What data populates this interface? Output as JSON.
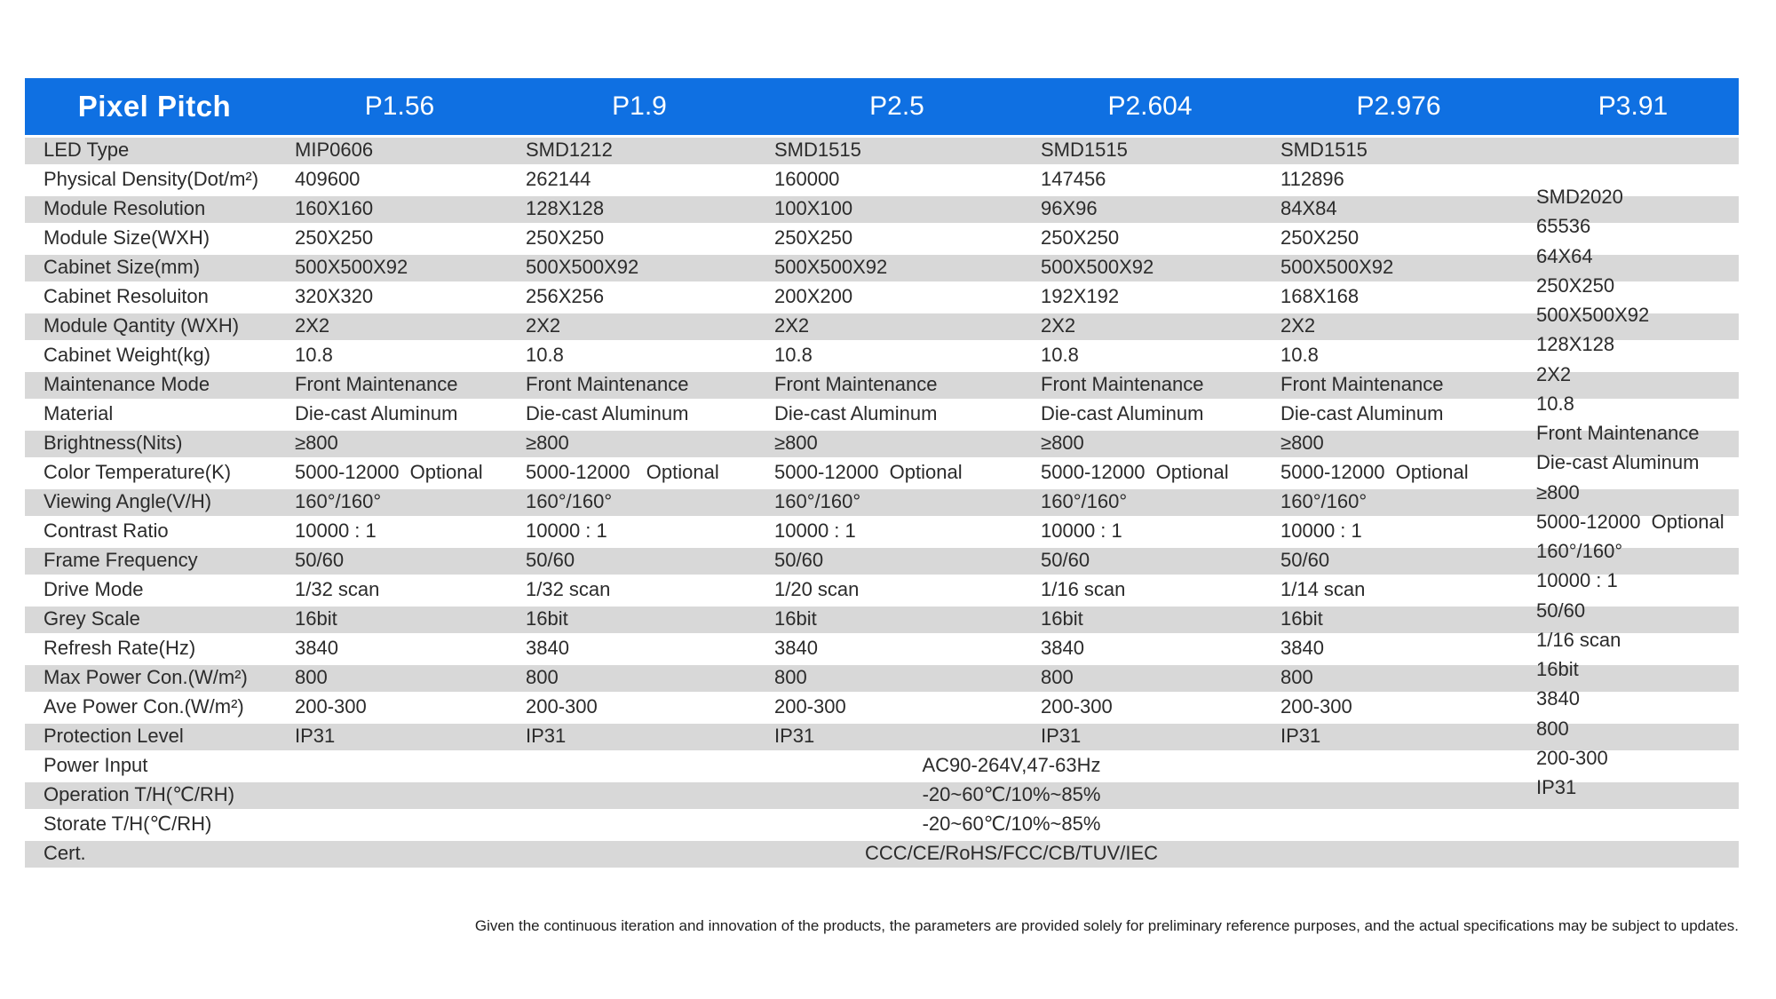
{
  "table": {
    "header": {
      "label": "Pixel Pitch",
      "columns": [
        "P1.56",
        "P1.9",
        "P2.5",
        "P2.604",
        "P2.976",
        "P3.91"
      ]
    },
    "rows": [
      {
        "label": "LED Type",
        "values": [
          "MIP0606",
          "SMD1212",
          "SMD1515",
          "SMD1515",
          "SMD1515"
        ]
      },
      {
        "label": "Physical Density(Dot/m²)",
        "values": [
          "409600",
          "262144",
          "160000",
          "147456",
          "112896"
        ]
      },
      {
        "label": "Module Resolution",
        "values": [
          "160X160",
          "128X128",
          "100X100",
          "96X96",
          "84X84"
        ]
      },
      {
        "label": "Module Size(WXH)",
        "values": [
          "250X250",
          "250X250",
          "250X250",
          "250X250",
          "250X250"
        ]
      },
      {
        "label": "Cabinet Size(mm)",
        "values": [
          "500X500X92",
          "500X500X92",
          "500X500X92",
          "500X500X92",
          "500X500X92"
        ]
      },
      {
        "label": "Cabinet Resoluiton",
        "values": [
          "320X320",
          "256X256",
          "200X200",
          "192X192",
          "168X168"
        ]
      },
      {
        "label": "Module Qantity (WXH)",
        "values": [
          "2X2",
          "2X2",
          "2X2",
          "2X2",
          "2X2"
        ]
      },
      {
        "label": "Cabinet Weight(kg)",
        "values": [
          "10.8",
          "10.8",
          "10.8",
          "10.8",
          "10.8"
        ]
      },
      {
        "label": "Maintenance Mode",
        "values": [
          "Front Maintenance",
          "Front Maintenance",
          "Front Maintenance",
          "Front Maintenance",
          "Front Maintenance"
        ]
      },
      {
        "label": "Material",
        "values": [
          "Die-cast Aluminum",
          "Die-cast Aluminum",
          "Die-cast Aluminum",
          "Die-cast Aluminum",
          "Die-cast Aluminum"
        ]
      },
      {
        "label": "Brightness(Nits)",
        "values": [
          "≥800",
          "≥800",
          "≥800",
          "≥800",
          "≥800"
        ]
      },
      {
        "label": "Color Temperature(K)",
        "values": [
          "5000-12000  Optional",
          "5000-12000   Optional",
          "5000-12000  Optional",
          "5000-12000  Optional",
          "5000-12000  Optional"
        ]
      },
      {
        "label": "Viewing Angle(V/H)",
        "values": [
          "160°/160°",
          "160°/160°",
          "160°/160°",
          "160°/160°",
          "160°/160°"
        ]
      },
      {
        "label": "Contrast Ratio",
        "values": [
          "10000 : 1",
          "10000 : 1",
          "10000 : 1",
          "10000 : 1",
          "10000 : 1"
        ]
      },
      {
        "label": "Frame Frequency",
        "values": [
          "50/60",
          "50/60",
          "50/60",
          "50/60",
          "50/60"
        ]
      },
      {
        "label": "Drive Mode",
        "values": [
          "1/32 scan",
          "1/32 scan",
          "1/20 scan",
          "1/16 scan",
          "1/14 scan"
        ]
      },
      {
        "label": "Grey Scale",
        "values": [
          "16bit",
          "16bit",
          "16bit",
          "16bit",
          "16bit"
        ]
      },
      {
        "label": "Refresh Rate(Hz)",
        "values": [
          "3840",
          "3840",
          "3840",
          "3840",
          "3840"
        ]
      },
      {
        "label": "Max Power Con.(W/m²)",
        "values": [
          "800",
          "800",
          "800",
          "800",
          "800"
        ]
      },
      {
        "label": "Ave Power Con.(W/m²)",
        "values": [
          "200-300",
          "200-300",
          "200-300",
          "200-300",
          "200-300"
        ]
      },
      {
        "label": "Protection Level",
        "values": [
          "IP31",
          "IP31",
          "IP31",
          "IP31",
          "IP31"
        ]
      }
    ],
    "merged_rows": [
      {
        "label": "Power Input",
        "value": "AC90-264V,47-63Hz"
      },
      {
        "label": "Operation T/H(℃/RH)",
        "value": "-20~60℃/10%~85%"
      },
      {
        "label": "Storate T/H(℃/RH)",
        "value": "-20~60℃/10%~85%"
      },
      {
        "label": "Cert.",
        "value": "CCC/CE/RoHS/FCC/CB/TUV/IEC"
      }
    ],
    "p391_values": [
      "SMD2020",
      "65536",
      "64X64",
      "250X250",
      "500X500X92",
      "128X128",
      "2X2",
      "10.8",
      "Front Maintenance",
      "Die-cast Aluminum",
      "≥800",
      "5000-12000  Optional",
      "160°/160°",
      "10000 : 1",
      "50/60",
      "1/16 scan",
      "16bit",
      "3840",
      "800",
      "200-300",
      "IP31"
    ]
  },
  "footer": {
    "note": "Given the continuous iteration and innovation of the products, the parameters are provided solely for preliminary reference purposes, and the actual specifications may be subject to updates."
  },
  "colors": {
    "header_bg": "#0f70e2",
    "header_text": "#ffffff",
    "stripe": "#d8d8d8",
    "body_text": "#2b2b2b"
  }
}
